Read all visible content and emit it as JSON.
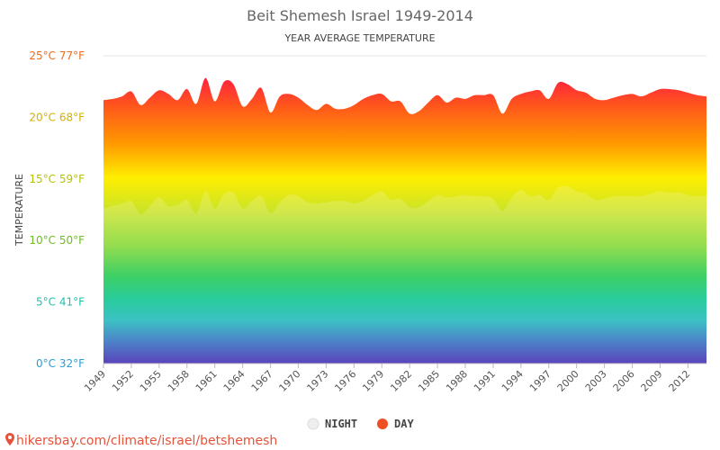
{
  "chart_data": {
    "type": "area",
    "title": "Beit Shemesh Israel 1949-2014",
    "subtitle": "YEAR AVERAGE TEMPERATURE",
    "ylabel": "TEMPERATURE",
    "ylim": [
      0,
      25
    ],
    "y_ticks": [
      {
        "value": 0,
        "label": "0°C 32°F",
        "color": "#2a9fd6"
      },
      {
        "value": 5,
        "label": "5°C 41°F",
        "color": "#1fbfb0"
      },
      {
        "value": 10,
        "label": "10°C 50°F",
        "color": "#6cc01d"
      },
      {
        "value": 15,
        "label": "15°C 59°F",
        "color": "#b9c200"
      },
      {
        "value": 20,
        "label": "20°C 68°F",
        "color": "#d5b000"
      },
      {
        "value": 25,
        "label": "25°C 77°F",
        "color": "#f06a18"
      }
    ],
    "x_tick_labels": [
      "1949",
      "1952",
      "1955",
      "1958",
      "1961",
      "1964",
      "1967",
      "1970",
      "1973",
      "1976",
      "1979",
      "1982",
      "1985",
      "1988",
      "1991",
      "1994",
      "1997",
      "2000",
      "2003",
      "2006",
      "2009",
      "2012"
    ],
    "x": [
      1949,
      1950,
      1951,
      1952,
      1953,
      1954,
      1955,
      1956,
      1957,
      1958,
      1959,
      1960,
      1961,
      1962,
      1963,
      1964,
      1965,
      1966,
      1967,
      1968,
      1969,
      1970,
      1971,
      1972,
      1973,
      1974,
      1975,
      1976,
      1977,
      1978,
      1979,
      1980,
      1981,
      1982,
      1983,
      1984,
      1985,
      1986,
      1987,
      1988,
      1989,
      1990,
      1991,
      1992,
      1993,
      1994,
      1995,
      1996,
      1997,
      1998,
      1999,
      2000,
      2001,
      2002,
      2003,
      2004,
      2005,
      2006,
      2007,
      2008,
      2009,
      2010,
      2011,
      2012,
      2013,
      2014
    ],
    "series": [
      {
        "name": "DAY",
        "color": "#f04e23",
        "values": [
          21.4,
          21.5,
          21.7,
          22.1,
          21.0,
          21.6,
          22.2,
          21.9,
          21.4,
          22.3,
          21.1,
          23.2,
          21.3,
          22.9,
          22.7,
          20.9,
          21.5,
          22.4,
          20.4,
          21.7,
          21.9,
          21.6,
          21.0,
          20.6,
          21.1,
          20.7,
          20.7,
          21.0,
          21.5,
          21.8,
          21.9,
          21.3,
          21.3,
          20.3,
          20.5,
          21.2,
          21.8,
          21.2,
          21.6,
          21.5,
          21.8,
          21.8,
          21.8,
          20.3,
          21.5,
          21.9,
          22.1,
          22.2,
          21.5,
          22.8,
          22.7,
          22.2,
          22.0,
          21.5,
          21.4,
          21.6,
          21.8,
          21.9,
          21.7,
          22.0,
          22.3,
          22.3,
          22.2,
          22.0,
          21.8,
          21.7
        ]
      },
      {
        "name": "NIGHT",
        "color": "#e8e8e8",
        "values": [
          12.6,
          12.8,
          13.0,
          13.2,
          12.1,
          12.8,
          13.5,
          12.8,
          12.9,
          13.3,
          12.2,
          14.0,
          12.6,
          13.8,
          13.9,
          12.6,
          13.2,
          13.6,
          12.2,
          13.1,
          13.7,
          13.6,
          13.1,
          13.0,
          13.1,
          13.2,
          13.2,
          13.0,
          13.2,
          13.7,
          14.0,
          13.3,
          13.4,
          12.7,
          12.7,
          13.2,
          13.7,
          13.5,
          13.6,
          13.7,
          13.6,
          13.6,
          13.4,
          12.4,
          13.5,
          14.1,
          13.6,
          13.7,
          13.3,
          14.3,
          14.4,
          14.0,
          13.8,
          13.3,
          13.4,
          13.6,
          13.6,
          13.6,
          13.6,
          13.8,
          14.0,
          13.9,
          13.9,
          13.7,
          13.6,
          13.6
        ]
      }
    ],
    "legend": [
      {
        "label": "NIGHT",
        "color": "#e8e8e8"
      },
      {
        "label": "DAY",
        "color": "#f04e23"
      }
    ],
    "legend_position": "bottom",
    "grid": true
  },
  "source": {
    "pin_icon": "map-pin-icon",
    "text": "hikersbay.com/climate/israel/betshemesh",
    "color": "#e5533a"
  }
}
